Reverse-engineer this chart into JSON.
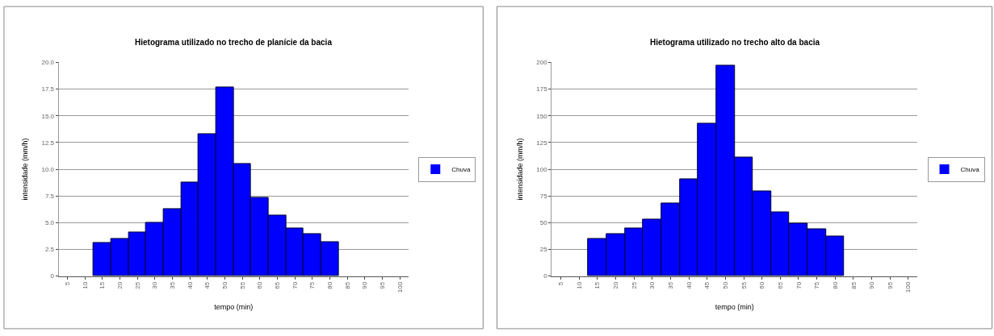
{
  "chart_data": [
    {
      "type": "bar",
      "title": "Hietograma utilizado no trecho de planície da bacia",
      "xlabel": "tempo (min)",
      "ylabel": "intensidade (mm/h)",
      "categories": [
        "5",
        "10",
        "15",
        "20",
        "25",
        "30",
        "35",
        "40",
        "45",
        "50",
        "55",
        "60",
        "65",
        "70",
        "75",
        "80",
        "85",
        "90",
        "95",
        "100"
      ],
      "series": [
        {
          "name": "Chuva",
          "color": "#0000ff",
          "values": [
            0,
            0,
            3.1,
            3.5,
            4.1,
            5.0,
            6.3,
            8.8,
            13.3,
            17.7,
            10.5,
            7.3,
            5.7,
            4.5,
            3.9,
            3.2,
            0,
            0,
            0,
            0
          ]
        }
      ],
      "ylim": [
        0,
        20
      ],
      "yticks": [
        0,
        {
          "value": 2.5,
          "label": "2.5"
        },
        {
          "value": 5,
          "label": "5.0"
        },
        {
          "value": 7.5,
          "label": "7.5"
        },
        {
          "value": 10,
          "label": "10.0"
        },
        {
          "value": 12.5,
          "label": "12.5"
        },
        {
          "value": 15,
          "label": "15.0"
        },
        {
          "value": 17.5,
          "label": "17.5"
        },
        {
          "value": 20,
          "label": "20.0"
        }
      ],
      "grid": "y",
      "legend": "right"
    },
    {
      "type": "bar",
      "title": "Hietograma utilizado no trecho alto da bacia",
      "xlabel": "tempo (min)",
      "ylabel": "intensidade (mm/h)",
      "categories": [
        "5",
        "10",
        "15",
        "20",
        "25",
        "30",
        "35",
        "40",
        "45",
        "50",
        "55",
        "60",
        "65",
        "70",
        "75",
        "80",
        "85",
        "90",
        "95",
        "100"
      ],
      "series": [
        {
          "name": "Chuva",
          "color": "#0000ff",
          "values": [
            0,
            0,
            35,
            39,
            45,
            53,
            68,
            91,
            143,
            197,
            111,
            79,
            60,
            49,
            44,
            37,
            0,
            0,
            0,
            0
          ]
        }
      ],
      "ylim": [
        0,
        200
      ],
      "yticks": [
        0,
        25,
        50,
        75,
        100,
        125,
        150,
        175,
        200
      ],
      "grid": "y",
      "legend": "right"
    }
  ]
}
